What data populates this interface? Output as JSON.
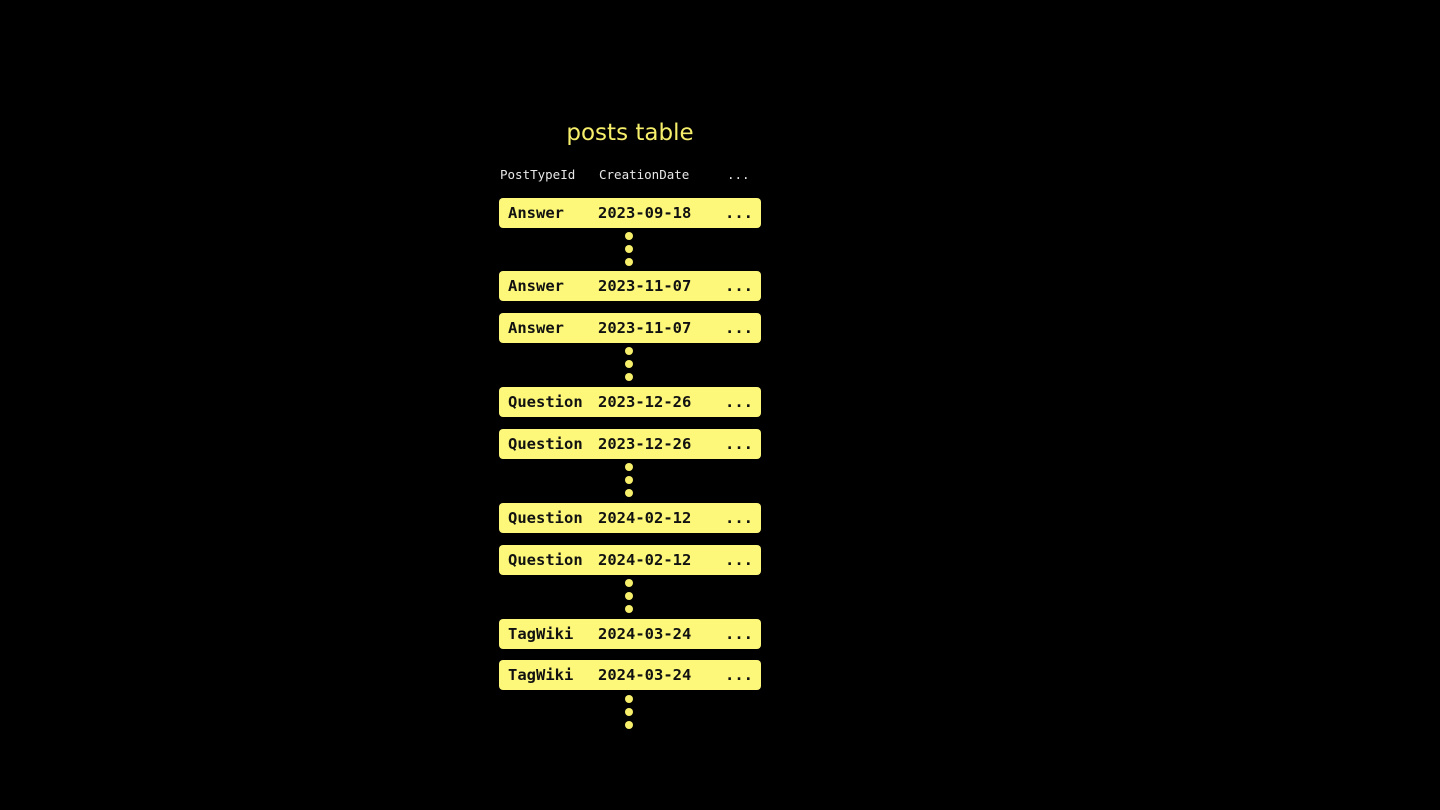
{
  "title": "posts table",
  "headers": [
    "PostTypeId",
    "CreationDate",
    "..."
  ],
  "rows": [
    [
      "Answer",
      "2023-09-18",
      "..."
    ],
    [
      "Answer",
      "2023-11-07",
      "..."
    ],
    [
      "Answer",
      "2023-11-07",
      "..."
    ],
    [
      "Question",
      "2023-12-26",
      "..."
    ],
    [
      "Question",
      "2023-12-26",
      "..."
    ],
    [
      "Question",
      "2024-02-12",
      "..."
    ],
    [
      "Question",
      "2024-02-12",
      "..."
    ],
    [
      "TagWiki",
      "2024-03-24",
      "..."
    ],
    [
      "TagWiki",
      "2024-03-24",
      "..."
    ]
  ],
  "colors": {
    "row_fill": "#fdf87a",
    "accent": "#f7ef6b",
    "background": "#000000"
  }
}
